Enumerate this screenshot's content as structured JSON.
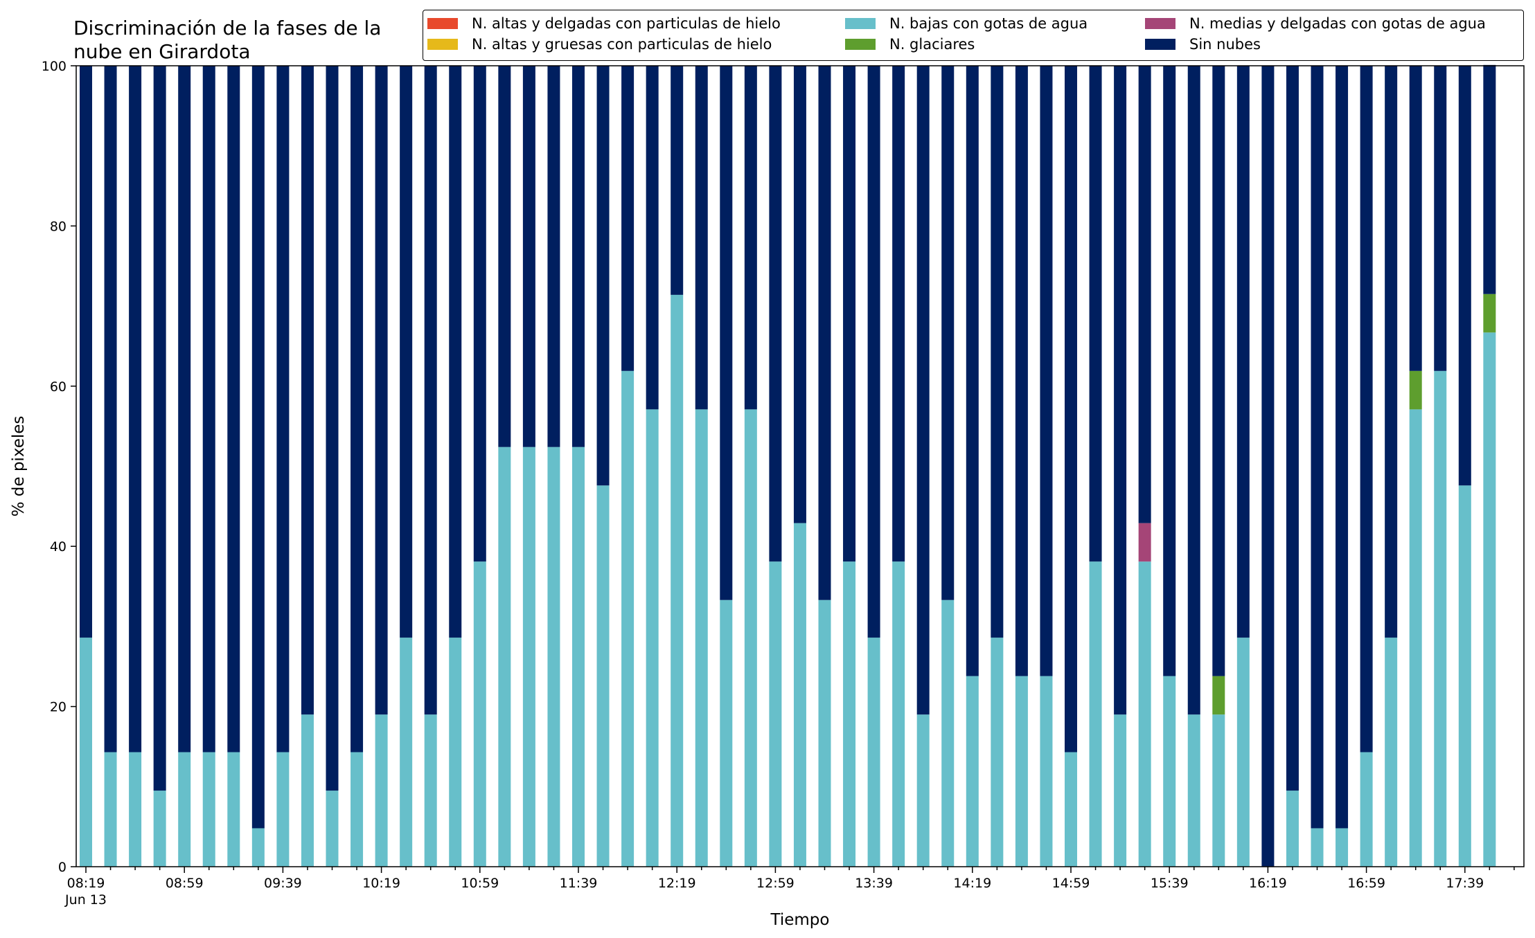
{
  "colors": {
    "altas_delgadas": "#e8492c",
    "altas_gruesas": "#e6b91a",
    "bajas": "#67bfca",
    "medias": "#a54577",
    "glaciares": "#5e9e2e",
    "sin_nubes": "#001f5f"
  },
  "chart_data": {
    "type": "bar",
    "stacked": true,
    "title": "Discriminación de la fases de la\nnube en Girardota",
    "xlabel": "Tiempo",
    "ylabel": "% de pixeles",
    "ylim": [
      0,
      100
    ],
    "yticks": [
      0,
      20,
      40,
      60,
      80,
      100
    ],
    "xtick_labels": [
      "08:19",
      "08:59",
      "09:39",
      "10:19",
      "10:59",
      "11:39",
      "12:19",
      "12:59",
      "13:39",
      "14:19",
      "14:59",
      "15:39",
      "16:19",
      "16:59",
      "17:39"
    ],
    "xtick_sublabel": "Jun 13",
    "bar_interval_minutes": 10,
    "legend_position": "top-right",
    "grid": false,
    "categories": [
      "08:19",
      "08:29",
      "08:39",
      "08:49",
      "08:59",
      "09:09",
      "09:19",
      "09:29",
      "09:39",
      "09:49",
      "09:59",
      "10:09",
      "10:19",
      "10:29",
      "10:39",
      "10:49",
      "10:59",
      "11:09",
      "11:19",
      "11:29",
      "11:39",
      "11:49",
      "11:59",
      "12:09",
      "12:19",
      "12:29",
      "12:39",
      "12:49",
      "12:59",
      "13:09",
      "13:19",
      "13:29",
      "13:39",
      "13:49",
      "13:59",
      "14:09",
      "14:19",
      "14:29",
      "14:39",
      "14:49",
      "14:59",
      "15:09",
      "15:19",
      "15:29",
      "15:39",
      "15:49",
      "15:59",
      "16:09",
      "16:19",
      "16:29",
      "16:39",
      "16:49",
      "16:59",
      "17:09",
      "17:19",
      "17:29",
      "17:39",
      "17:49"
    ],
    "series": [
      {
        "name": "N. altas y delgadas con particulas de hielo",
        "color_key": "altas_delgadas",
        "values": [
          0,
          0,
          0,
          0,
          0,
          0,
          0,
          0,
          0,
          0,
          0,
          0,
          0,
          0,
          0,
          0,
          0,
          0,
          0,
          0,
          0,
          0,
          0,
          0,
          0,
          0,
          0,
          0,
          0,
          0,
          0,
          0,
          0,
          0,
          0,
          0,
          0,
          0,
          0,
          0,
          0,
          0,
          0,
          0,
          0,
          0,
          0,
          0,
          0,
          0,
          0,
          0,
          0,
          0,
          0,
          0,
          0,
          0
        ]
      },
      {
        "name": "N. altas y gruesas con particulas de hielo",
        "color_key": "altas_gruesas",
        "values": [
          0,
          0,
          0,
          0,
          0,
          0,
          0,
          0,
          0,
          0,
          0,
          0,
          0,
          0,
          0,
          0,
          0,
          0,
          0,
          0,
          0,
          0,
          0,
          0,
          0,
          0,
          0,
          0,
          0,
          0,
          0,
          0,
          0,
          0,
          0,
          0,
          0,
          0,
          0,
          0,
          0,
          0,
          0,
          0,
          0,
          0,
          0,
          0,
          0,
          0,
          0,
          0,
          0,
          0,
          0,
          0,
          0,
          0
        ]
      },
      {
        "name": "N. bajas con gotas de agua",
        "color_key": "bajas",
        "values": [
          28.6,
          14.3,
          14.3,
          9.5,
          14.3,
          14.3,
          14.3,
          4.8,
          14.3,
          19.0,
          9.5,
          14.3,
          19.0,
          28.6,
          19.0,
          28.6,
          38.1,
          52.4,
          52.4,
          52.4,
          52.4,
          47.6,
          61.9,
          57.1,
          71.4,
          57.1,
          33.3,
          57.1,
          38.1,
          42.9,
          33.3,
          38.1,
          28.6,
          38.1,
          19.0,
          33.3,
          23.8,
          28.6,
          23.8,
          23.8,
          14.3,
          38.1,
          19.0,
          38.1,
          23.8,
          19.0,
          19.0,
          28.6,
          0,
          9.5,
          4.8,
          4.8,
          14.3,
          28.6,
          57.1,
          61.9,
          47.6,
          66.7
        ]
      },
      {
        "name": "N. glaciares",
        "color_key": "glaciares",
        "values": [
          0,
          0,
          0,
          0,
          0,
          0,
          0,
          0,
          0,
          0,
          0,
          0,
          0,
          0,
          0,
          0,
          0,
          0,
          0,
          0,
          0,
          0,
          0,
          0,
          0,
          0,
          0,
          0,
          0,
          0,
          0,
          0,
          0,
          0,
          0,
          0,
          0,
          0,
          0,
          0,
          0,
          0,
          0,
          0,
          0,
          0,
          4.8,
          0,
          0,
          0,
          0,
          0,
          0,
          0,
          4.8,
          0,
          0,
          4.8
        ]
      },
      {
        "name": "N. medias y delgadas con gotas de agua",
        "color_key": "medias",
        "values": [
          0,
          0,
          0,
          0,
          0,
          0,
          0,
          0,
          0,
          0,
          0,
          0,
          0,
          0,
          0,
          0,
          0,
          0,
          0,
          0,
          0,
          0,
          0,
          0,
          0,
          0,
          0,
          0,
          0,
          0,
          0,
          0,
          0,
          0,
          0,
          0,
          0,
          0,
          0,
          0,
          0,
          0,
          0,
          4.8,
          0,
          0,
          0,
          0,
          0,
          0,
          0,
          0,
          0,
          0,
          0,
          0,
          0,
          0
        ]
      },
      {
        "name": "Sin nubes",
        "color_key": "sin_nubes",
        "values": [
          71.4,
          85.7,
          85.7,
          90.5,
          85.7,
          85.7,
          85.7,
          95.2,
          85.7,
          81.0,
          90.5,
          85.7,
          81.0,
          71.4,
          81.0,
          71.4,
          61.9,
          47.6,
          47.6,
          47.6,
          47.6,
          52.4,
          38.1,
          42.9,
          28.6,
          42.9,
          66.7,
          42.9,
          61.9,
          57.1,
          66.7,
          61.9,
          71.4,
          61.9,
          81.0,
          66.7,
          76.2,
          71.4,
          76.2,
          76.2,
          85.7,
          61.9,
          81.0,
          57.1,
          76.2,
          81.0,
          76.2,
          71.4,
          100,
          90.5,
          95.2,
          95.2,
          85.7,
          71.4,
          38.1,
          38.1,
          52.4,
          28.6
        ]
      }
    ],
    "legend": [
      {
        "label": "N. altas y delgadas con particulas de hielo",
        "color_key": "altas_delgadas"
      },
      {
        "label": "N. bajas con gotas de agua",
        "color_key": "bajas"
      },
      {
        "label": "N. medias y delgadas con gotas de agua",
        "color_key": "medias"
      },
      {
        "label": "N. altas y gruesas con particulas de hielo",
        "color_key": "altas_gruesas"
      },
      {
        "label": "N. glaciares",
        "color_key": "glaciares"
      },
      {
        "label": "Sin nubes",
        "color_key": "sin_nubes"
      }
    ]
  }
}
